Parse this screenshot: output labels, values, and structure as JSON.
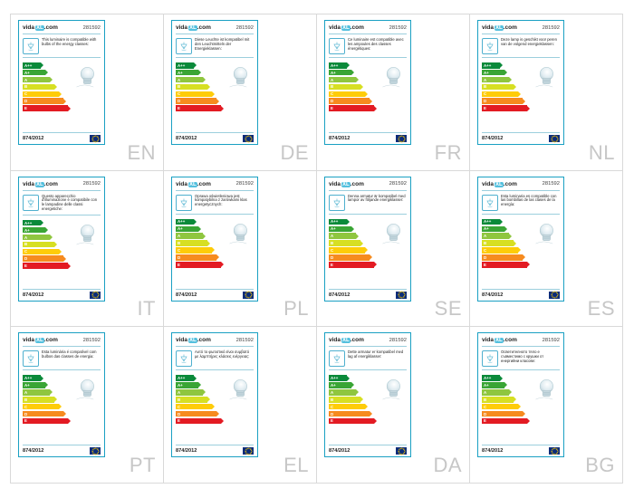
{
  "brand": {
    "prefix": "vida",
    "pill": "XL",
    "suffix": ".com"
  },
  "product_number": "281592",
  "regulation": "874/2012",
  "rating_arrows": [
    {
      "letter": "A++",
      "color": "#0a8a3a",
      "width": 20
    },
    {
      "letter": "A+",
      "color": "#3aa535",
      "width": 25
    },
    {
      "letter": "A",
      "color": "#8fc63f",
      "width": 30
    },
    {
      "letter": "B",
      "color": "#d7df23",
      "width": 35
    },
    {
      "letter": "C",
      "color": "#fecc09",
      "width": 40
    },
    {
      "letter": "D",
      "color": "#f68b1f",
      "width": 45
    },
    {
      "letter": "E",
      "color": "#e31b23",
      "width": 50
    }
  ],
  "icon_style": {
    "border_color": "#4fb0cf",
    "lamp_stroke": "#65bcd6",
    "card_border": "#1aa0c3"
  },
  "cells": [
    {
      "lang": "EN",
      "text": "This luminaire is compatible with bulbs of the energy classes:"
    },
    {
      "lang": "DE",
      "text": "Diese Leuchte ist kompatibel mit den Leuchtmitteln der Energieklassen:"
    },
    {
      "lang": "FR",
      "text": "Ce luminaire est compatible avec les ampoules des classes énergétiques:"
    },
    {
      "lang": "NL",
      "text": "Deze lamp is geschikt voor peren van de volgend energieklassen:"
    },
    {
      "lang": "IT",
      "text": "Questo apparecchio d'illuminazione è compatibile con le lampadine delle classi energetiche:"
    },
    {
      "lang": "PL",
      "text": "Oprawa oświetleniowa jest kompatybilna z żarówkami klas energetycznych:"
    },
    {
      "lang": "SE",
      "text": "Denna armatur är kompatibel med lampor av följande energiklasser:"
    },
    {
      "lang": "ES",
      "text": "Esta luminaria es compatible con las bombillas de las clases de la energía:"
    },
    {
      "lang": "PT",
      "text": "Esta luminária é compatível com bulbos das classes de energia:"
    },
    {
      "lang": "EL",
      "text": "Αυτό το φωτιστικό είναι συμβατό με λαμπτήρες κλάσεις ενέργειας:"
    },
    {
      "lang": "DA",
      "text": "Dette armatur er kompatibel med lag af energiklasser:"
    },
    {
      "lang": "BG",
      "text": "Осветителното тяло е съвместимо с крушки от енергийни класове:"
    }
  ]
}
